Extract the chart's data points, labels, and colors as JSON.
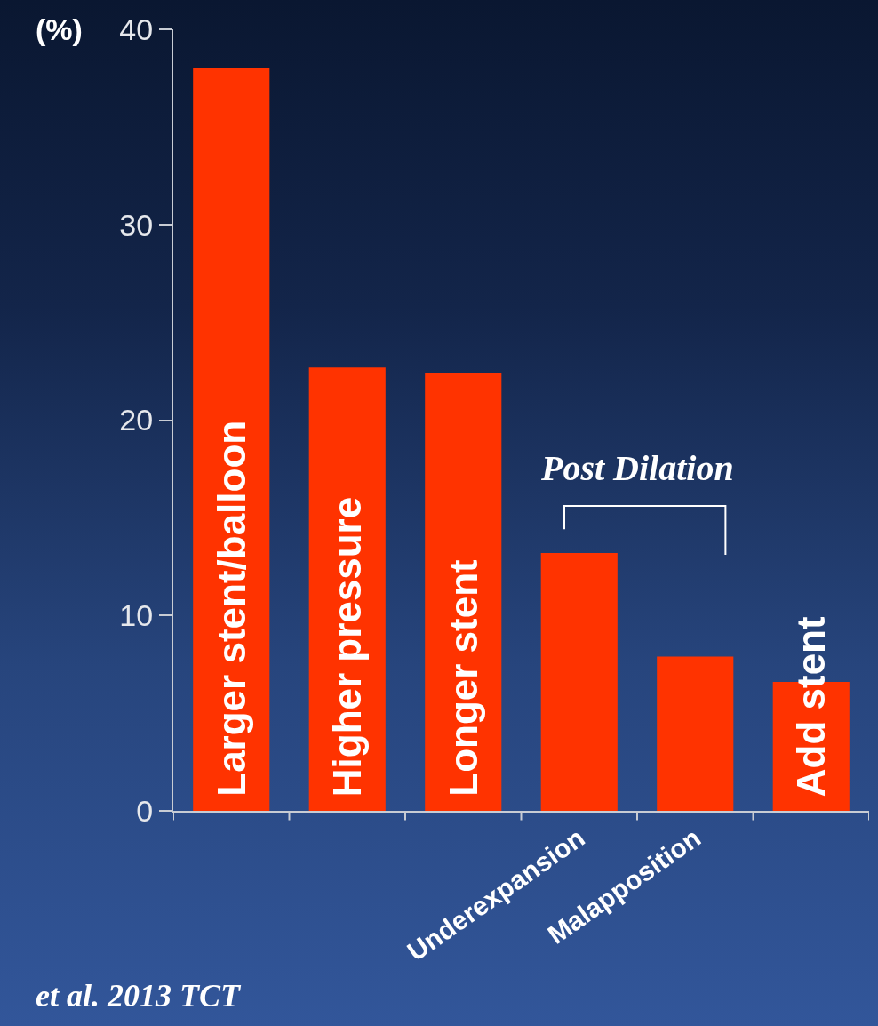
{
  "chart_data": {
    "type": "bar",
    "categories": [
      "Larger stent/balloon",
      "Higher pressure",
      "Longer stent",
      "Underexpansion",
      "Malapposition",
      "Add stent"
    ],
    "values": [
      38.0,
      22.7,
      22.4,
      13.2,
      7.9,
      6.6
    ],
    "color": "#ff3300",
    "ylabel": "(%)",
    "ylim": [
      0,
      40
    ],
    "yticks": [
      0,
      10,
      20,
      30,
      40
    ],
    "grid": false,
    "annotations": [
      "Post Dilation",
      "et al. 2013 TCT"
    ]
  }
}
